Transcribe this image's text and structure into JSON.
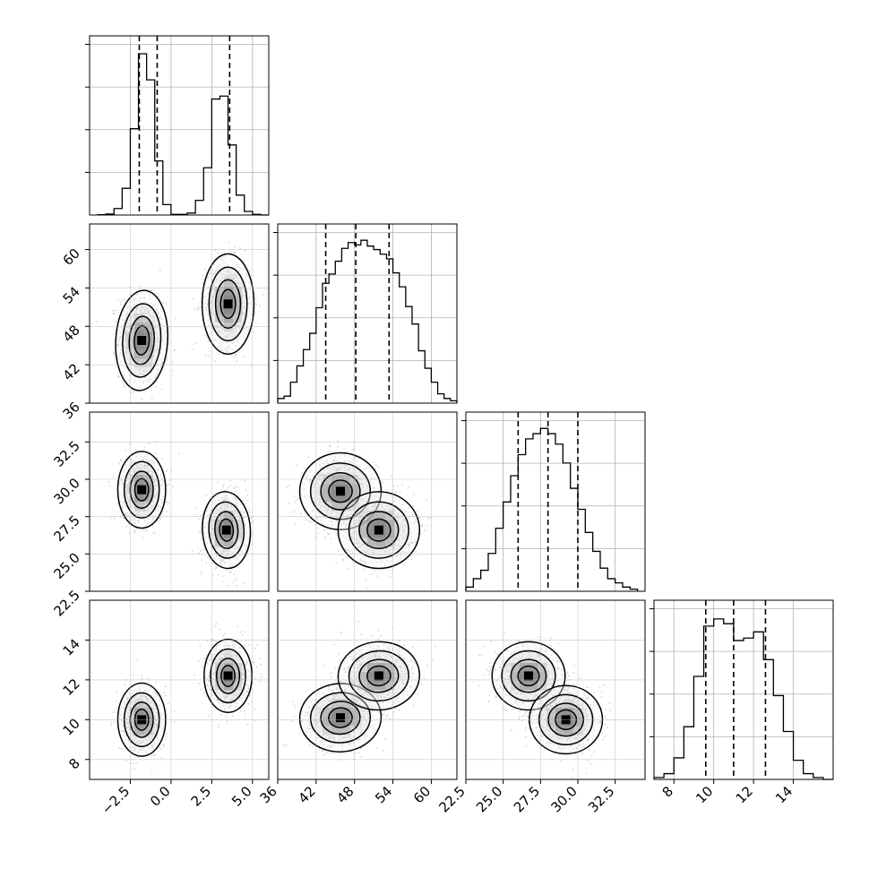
{
  "chart_data": {
    "type": "corner",
    "grid": true,
    "title": "",
    "xlabels": [
      "",
      "",
      "",
      ""
    ],
    "ylabels": [
      "",
      "",
      "",
      ""
    ],
    "colors": {
      "line": "#000000",
      "grid": "#b0b0b0",
      "scatter": "#888888"
    },
    "params": [
      {
        "range": [
          -5.0,
          6.0
        ],
        "ticks": [
          -2.5,
          0.0,
          2.5,
          5.0
        ],
        "tick_labels": [
          "−2.5",
          "0.0",
          "2.5",
          "5.0"
        ]
      },
      {
        "range": [
          36,
          64
        ],
        "ticks": [
          36,
          42,
          48,
          54,
          60
        ],
        "tick_labels": [
          "36",
          "42",
          "48",
          "54",
          "60"
        ]
      },
      {
        "range": [
          22.5,
          34.5
        ],
        "ticks": [
          22.5,
          25.0,
          27.5,
          30.0,
          32.5
        ],
        "tick_labels": [
          "22.5",
          "25.0",
          "27.5",
          "30.0",
          "32.5"
        ]
      },
      {
        "range": [
          7.0,
          16.0
        ],
        "ticks": [
          8,
          10,
          12,
          14
        ],
        "tick_labels": [
          "8",
          "10",
          "12",
          "14"
        ]
      }
    ],
    "histograms": [
      {
        "param": 0,
        "bin_edges": [
          -4.5,
          -4.0,
          -3.5,
          -3.0,
          -2.5,
          -2.0,
          -1.5,
          -1.0,
          -0.5,
          0.0,
          0.5,
          1.0,
          1.5,
          2.0,
          2.5,
          3.0,
          3.5,
          4.0,
          4.5,
          5.0,
          5.5,
          6.0
        ],
        "counts": [
          1,
          3,
          20,
          82,
          265,
          495,
          415,
          166,
          32,
          2,
          2,
          6,
          45,
          145,
          356,
          365,
          215,
          61,
          11,
          2,
          0
        ],
        "max_count": 500,
        "quantiles": [
          -1.95,
          -0.85,
          3.6
        ]
      },
      {
        "param": 1,
        "bin_edges": [
          36.0,
          37.0,
          38.0,
          39.0,
          40.0,
          41.0,
          42.0,
          43.0,
          44.0,
          45.0,
          46.0,
          47.0,
          48.0,
          49.0,
          50.0,
          51.0,
          52.0,
          53.0,
          54.0,
          55.0,
          56.0,
          57.0,
          58.0,
          59.0,
          60.0,
          61.0,
          62.0,
          63.0,
          64.0
        ],
        "counts": [
          4,
          6,
          18,
          32,
          46,
          60,
          82,
          103,
          111,
          122,
          133,
          138,
          136,
          140,
          135,
          132,
          128,
          124,
          112,
          100,
          83,
          68,
          45,
          30,
          18,
          8,
          4,
          2
        ],
        "max_count": 140,
        "quantiles": [
          43.5,
          48.2,
          53.4
        ]
      },
      {
        "param": 2,
        "bin_edges": [
          22.5,
          23.0,
          23.5,
          24.0,
          24.5,
          25.0,
          25.5,
          26.0,
          26.5,
          27.0,
          27.5,
          28.0,
          28.5,
          29.0,
          29.5,
          30.0,
          30.5,
          31.0,
          31.5,
          32.0,
          32.5,
          33.0,
          33.5,
          34.0
        ],
        "counts": [
          4,
          12,
          20,
          36,
          60,
          85,
          110,
          130,
          145,
          150,
          155,
          150,
          140,
          122,
          98,
          78,
          56,
          38,
          22,
          12,
          8,
          4,
          2
        ],
        "max_count": 155,
        "quantiles": [
          26.0,
          28.0,
          30.0
        ]
      },
      {
        "param": 3,
        "bin_edges": [
          7.0,
          7.5,
          8.0,
          8.5,
          9.0,
          9.5,
          10.0,
          10.5,
          11.0,
          11.5,
          12.0,
          12.5,
          13.0,
          13.5,
          14.0,
          14.5,
          15.0,
          15.5,
          16.0
        ],
        "counts": [
          4,
          12,
          45,
          110,
          215,
          320,
          335,
          325,
          290,
          295,
          308,
          250,
          175,
          100,
          40,
          12,
          4,
          0
        ],
        "max_count": 340,
        "quantiles": [
          9.6,
          11.0,
          12.6
        ]
      }
    ],
    "blobs": [
      {
        "x": 0,
        "y": 1,
        "modes": [
          {
            "mx": -1.8,
            "my": 45.8,
            "sx": 0.65,
            "sy": 3.2,
            "rho": -0.1
          },
          {
            "mx": 3.5,
            "my": 51.5,
            "sx": 0.65,
            "sy": 3.2,
            "rho": 0.0
          }
        ]
      },
      {
        "x": 0,
        "y": 2,
        "modes": [
          {
            "mx": -1.8,
            "my": 29.3,
            "sx": 0.6,
            "sy": 1.05,
            "rho": 0.0
          },
          {
            "mx": 3.4,
            "my": 26.6,
            "sx": 0.6,
            "sy": 1.05,
            "rho": 0.1
          }
        ]
      },
      {
        "x": 1,
        "y": 2,
        "modes": [
          {
            "mx": 45.8,
            "my": 29.2,
            "sx": 2.6,
            "sy": 1.05,
            "rho": 0.0
          },
          {
            "mx": 51.8,
            "my": 26.6,
            "sx": 2.6,
            "sy": 1.05,
            "rho": 0.0
          }
        ]
      },
      {
        "x": 0,
        "y": 3,
        "modes": [
          {
            "mx": -1.8,
            "my": 10.0,
            "sx": 0.6,
            "sy": 0.75,
            "rho": 0.0
          },
          {
            "mx": 3.5,
            "my": 12.2,
            "sx": 0.6,
            "sy": 0.75,
            "rho": 0.0
          }
        ]
      },
      {
        "x": 1,
        "y": 3,
        "modes": [
          {
            "mx": 45.8,
            "my": 10.1,
            "sx": 2.6,
            "sy": 0.7,
            "rho": 0.1
          },
          {
            "mx": 51.8,
            "my": 12.2,
            "sx": 2.6,
            "sy": 0.7,
            "rho": 0.1
          }
        ]
      },
      {
        "x": 2,
        "y": 3,
        "modes": [
          {
            "mx": 26.7,
            "my": 12.2,
            "sx": 1.0,
            "sy": 0.7,
            "rho": 0.0
          },
          {
            "mx": 29.2,
            "my": 10.0,
            "sx": 1.0,
            "sy": 0.7,
            "rho": 0.0
          }
        ]
      }
    ]
  }
}
